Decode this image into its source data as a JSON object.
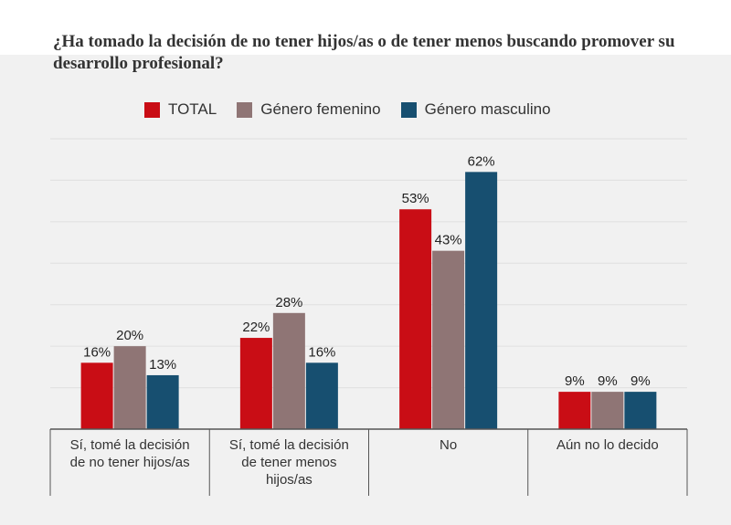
{
  "title": "¿Ha tomado la decisión de no tener hijos/as o de tener menos buscando promover su desarrollo profesional?",
  "chart_data": {
    "type": "bar",
    "categories": [
      [
        "Sí, tomé la decisión",
        "de no tener hijos/as"
      ],
      [
        "Sí, tomé la decisión",
        "de tener menos",
        "hijos/as"
      ],
      [
        "No"
      ],
      [
        "Aún no lo decido"
      ]
    ],
    "series": [
      {
        "name": "TOTAL",
        "color": "#c90d15",
        "values": [
          16,
          22,
          53,
          9
        ],
        "labels": [
          "16%",
          "22%",
          "53%",
          "9%"
        ]
      },
      {
        "name": "Género femenino",
        "color": "#8f7575",
        "values": [
          20,
          28,
          43,
          9
        ],
        "labels": [
          "20%",
          "28%",
          "43%",
          "9%"
        ]
      },
      {
        "name": "Género masculino",
        "color": "#174f70",
        "values": [
          13,
          16,
          62,
          9
        ],
        "labels": [
          "13%",
          "16%",
          "62%",
          "9%"
        ]
      }
    ],
    "ylim": [
      0,
      70
    ],
    "grid": true,
    "legend_position": "top"
  }
}
